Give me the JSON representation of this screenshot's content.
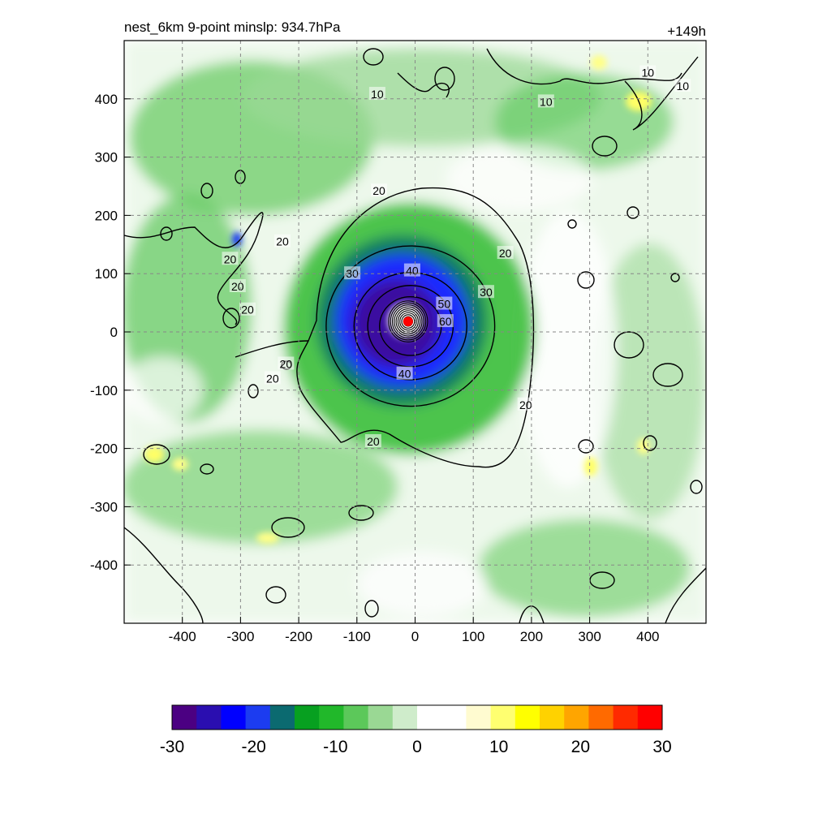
{
  "chart_data": {
    "type": "heatmap",
    "title": "nest_6km  9-point minslp: 934.7hPa",
    "forecast_hour_label": "+149h",
    "xlim": [
      -500,
      500
    ],
    "ylim": [
      -500,
      500
    ],
    "x_ticks": [
      -400,
      -300,
      -200,
      -100,
      0,
      100,
      200,
      300,
      400
    ],
    "y_ticks": [
      400,
      300,
      200,
      100,
      0,
      -100,
      -200,
      -300,
      -400
    ],
    "grid": true,
    "colorbar": {
      "ticks": [
        -30,
        -20,
        -10,
        0,
        10,
        20,
        30
      ],
      "range": [
        -30,
        30
      ],
      "colors": [
        "#4b0082",
        "#2a0eb0",
        "#0000ff",
        "#1c3cf0",
        "#0b6a70",
        "#07a020",
        "#21b82a",
        "#5cc85a",
        "#9ad894",
        "#cfeccb",
        "#ffffff",
        "#ffffff",
        "#fffbd0",
        "#ffff70",
        "#ffff00",
        "#ffd200",
        "#ffa500",
        "#ff6a00",
        "#ff2a00",
        "#ff0000"
      ]
    },
    "storm_center": {
      "x": -12,
      "y": 18,
      "color": "#ff0000"
    },
    "contour_labels": [
      {
        "text": "10",
        "x": -65,
        "y": 408
      },
      {
        "text": "10",
        "x": 225,
        "y": 395
      },
      {
        "text": "10",
        "x": 400,
        "y": 445
      },
      {
        "text": "10",
        "x": 460,
        "y": 422
      },
      {
        "text": "20",
        "x": -62,
        "y": 242
      },
      {
        "text": "20",
        "x": -228,
        "y": 155
      },
      {
        "text": "20",
        "x": -318,
        "y": 125
      },
      {
        "text": "20",
        "x": -305,
        "y": 78
      },
      {
        "text": "20",
        "x": -288,
        "y": 38
      },
      {
        "text": "20",
        "x": 155,
        "y": 135
      },
      {
        "text": "20",
        "x": -222,
        "y": -55
      },
      {
        "text": "20",
        "x": -245,
        "y": -80
      },
      {
        "text": "20",
        "x": 190,
        "y": -125
      },
      {
        "text": "20",
        "x": -72,
        "y": -188
      },
      {
        "text": "30",
        "x": -108,
        "y": 100
      },
      {
        "text": "30",
        "x": 122,
        "y": 68
      },
      {
        "text": "40",
        "x": -5,
        "y": 105
      },
      {
        "text": "40",
        "x": -18,
        "y": -72
      },
      {
        "text": "50",
        "x": 50,
        "y": 48
      },
      {
        "text": "60",
        "x": 52,
        "y": 18
      }
    ],
    "rings": [
      {
        "label": "30",
        "r": 142
      },
      {
        "label": "40",
        "r": 95
      },
      {
        "label": "50",
        "r": 72
      },
      {
        "label": "60",
        "r": 52
      }
    ]
  }
}
